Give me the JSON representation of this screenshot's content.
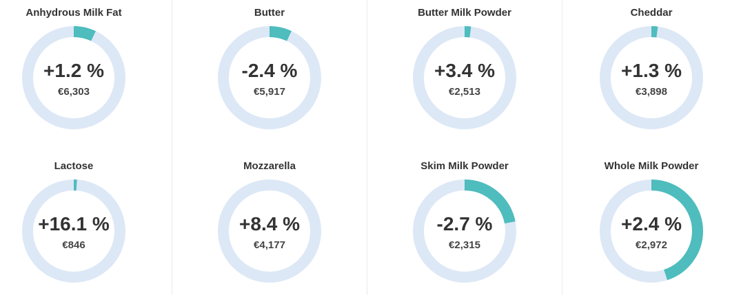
{
  "colors": {
    "track": "#dde8f6",
    "fill": "#4fbcbd"
  },
  "chart_data": {
    "type": "pie",
    "items": [
      {
        "name": "Anhydrous Milk Fat",
        "change": "+1.2 %",
        "price": "€6,303",
        "fill_fraction": 0.07
      },
      {
        "name": "Butter",
        "change": "-2.4 %",
        "price": "€5,917",
        "fill_fraction": 0.07
      },
      {
        "name": "Butter Milk Powder",
        "change": "+3.4 %",
        "price": "€2,513",
        "fill_fraction": 0.02
      },
      {
        "name": "Cheddar",
        "change": "+1.3 %",
        "price": "€3,898",
        "fill_fraction": 0.02
      },
      {
        "name": "Lactose",
        "change": "+16.1 %",
        "price": "€846",
        "fill_fraction": 0.01
      },
      {
        "name": "Mozzarella",
        "change": "+8.4 %",
        "price": "€4,177",
        "fill_fraction": 0.0
      },
      {
        "name": "Skim Milk Powder",
        "change": "-2.7 %",
        "price": "€2,315",
        "fill_fraction": 0.22
      },
      {
        "name": "Whole Milk Powder",
        "change": "+2.4 %",
        "price": "€2,972",
        "fill_fraction": 0.45
      }
    ]
  }
}
